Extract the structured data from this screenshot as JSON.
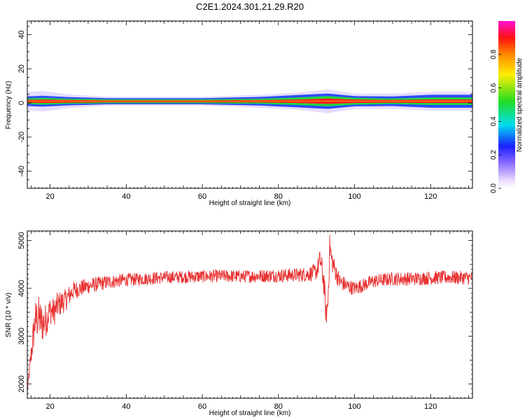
{
  "title": "C2E1.2024.301.21.29.R20",
  "colors": {
    "snr_line": "#e83030",
    "band_core": "#ff2020",
    "band_mid": "#22dd33",
    "band_outer": "#1a3cff",
    "band_halo": "#b89cff",
    "axes": "#000000",
    "background": "#ffffff"
  },
  "chart_data": [
    {
      "type": "heatmap",
      "xlabel": "Height of straight line (km)",
      "ylabel": "Frequency (Hz)",
      "xlim": [
        14,
        131
      ],
      "ylim": [
        -50,
        48
      ],
      "xticks": [
        20,
        40,
        60,
        80,
        100,
        120
      ],
      "yticks": [
        -40,
        -20,
        0,
        20,
        40
      ],
      "ytick_labels": [
        "-40",
        "-20",
        "0",
        "20",
        "40"
      ],
      "grid": false,
      "band": {
        "center_freq_hz": 1,
        "halfwidth_points": [
          {
            "x": 14,
            "core": 0.8,
            "mid": 1.6,
            "outer": 2.8,
            "halo": 5.5
          },
          {
            "x": 18,
            "core": 1.0,
            "mid": 2.0,
            "outer": 3.2,
            "halo": 6.0
          },
          {
            "x": 25,
            "core": 0.8,
            "mid": 1.5,
            "outer": 2.4,
            "halo": 4.0
          },
          {
            "x": 35,
            "core": 0.6,
            "mid": 1.2,
            "outer": 1.8,
            "halo": 2.6
          },
          {
            "x": 60,
            "core": 0.6,
            "mid": 1.2,
            "outer": 1.8,
            "halo": 2.6
          },
          {
            "x": 75,
            "core": 0.7,
            "mid": 1.5,
            "outer": 2.5,
            "halo": 3.8
          },
          {
            "x": 85,
            "core": 1.0,
            "mid": 2.2,
            "outer": 3.6,
            "halo": 5.0
          },
          {
            "x": 93,
            "core": 1.6,
            "mid": 3.0,
            "outer": 4.5,
            "halo": 7.0
          },
          {
            "x": 100,
            "core": 1.0,
            "mid": 2.0,
            "outer": 3.0,
            "halo": 4.5
          },
          {
            "x": 110,
            "core": 0.8,
            "mid": 1.6,
            "outer": 2.8,
            "halo": 4.5
          },
          {
            "x": 120,
            "core": 1.0,
            "mid": 2.2,
            "outer": 3.8,
            "halo": 5.5
          },
          {
            "x": 131,
            "core": 1.0,
            "mid": 2.2,
            "outer": 3.8,
            "halo": 5.5
          }
        ]
      },
      "colorbar": {
        "label": "Normalized spectral amplitude",
        "range": [
          0.0,
          1.0
        ],
        "ticks": [
          0.0,
          0.2,
          0.4,
          0.6,
          0.8
        ],
        "tick_labels": [
          "0.0",
          "0.2",
          "0.4",
          "0.6",
          "0.8"
        ],
        "colormap": [
          "#ffffff",
          "#c8a0ff",
          "#1a20ff",
          "#00ddee",
          "#22dd22",
          "#ffee00",
          "#ff8800",
          "#ff1010",
          "#ff10d0"
        ]
      }
    },
    {
      "type": "line",
      "xlabel": "Height of straight line (km)",
      "ylabel": "SNR (10 * v/v)",
      "xlim": [
        14,
        131
      ],
      "ylim": [
        1700,
        5200
      ],
      "xticks": [
        20,
        40,
        60,
        80,
        100,
        120
      ],
      "yticks": [
        2000,
        3000,
        4000,
        5000
      ],
      "grid": false,
      "series": [
        {
          "x": [
            14,
            15,
            16,
            17,
            18,
            19,
            20,
            21,
            22,
            23,
            24,
            25,
            26,
            28,
            30,
            32,
            35,
            40,
            45,
            50,
            55,
            60,
            65,
            70,
            75,
            80,
            85,
            88,
            90,
            91,
            92,
            92.5,
            93,
            93.5,
            94,
            95,
            96,
            98,
            100,
            105,
            110,
            115,
            120,
            125,
            131
          ],
          "values": [
            1850,
            2600,
            3300,
            3400,
            3250,
            3350,
            3550,
            3500,
            3650,
            3700,
            3750,
            3850,
            3950,
            4000,
            4050,
            4080,
            4130,
            4180,
            4200,
            4230,
            4240,
            4250,
            4260,
            4250,
            4260,
            4270,
            4280,
            4300,
            4350,
            4600,
            4100,
            3400,
            3700,
            4900,
            4600,
            4350,
            4150,
            4050,
            4000,
            4150,
            4200,
            4200,
            4220,
            4230,
            4220
          ],
          "noise_amplitude": [
            60,
            250,
            450,
            450,
            400,
            350,
            300,
            300,
            280,
            260,
            240,
            220,
            200,
            180,
            170,
            160,
            150,
            140,
            135,
            135,
            135,
            135,
            135,
            135,
            140,
            145,
            150,
            160,
            180,
            250,
            300,
            250,
            250,
            300,
            250,
            200,
            180,
            160,
            150,
            145,
            145,
            145,
            145,
            145,
            145
          ]
        }
      ]
    }
  ]
}
